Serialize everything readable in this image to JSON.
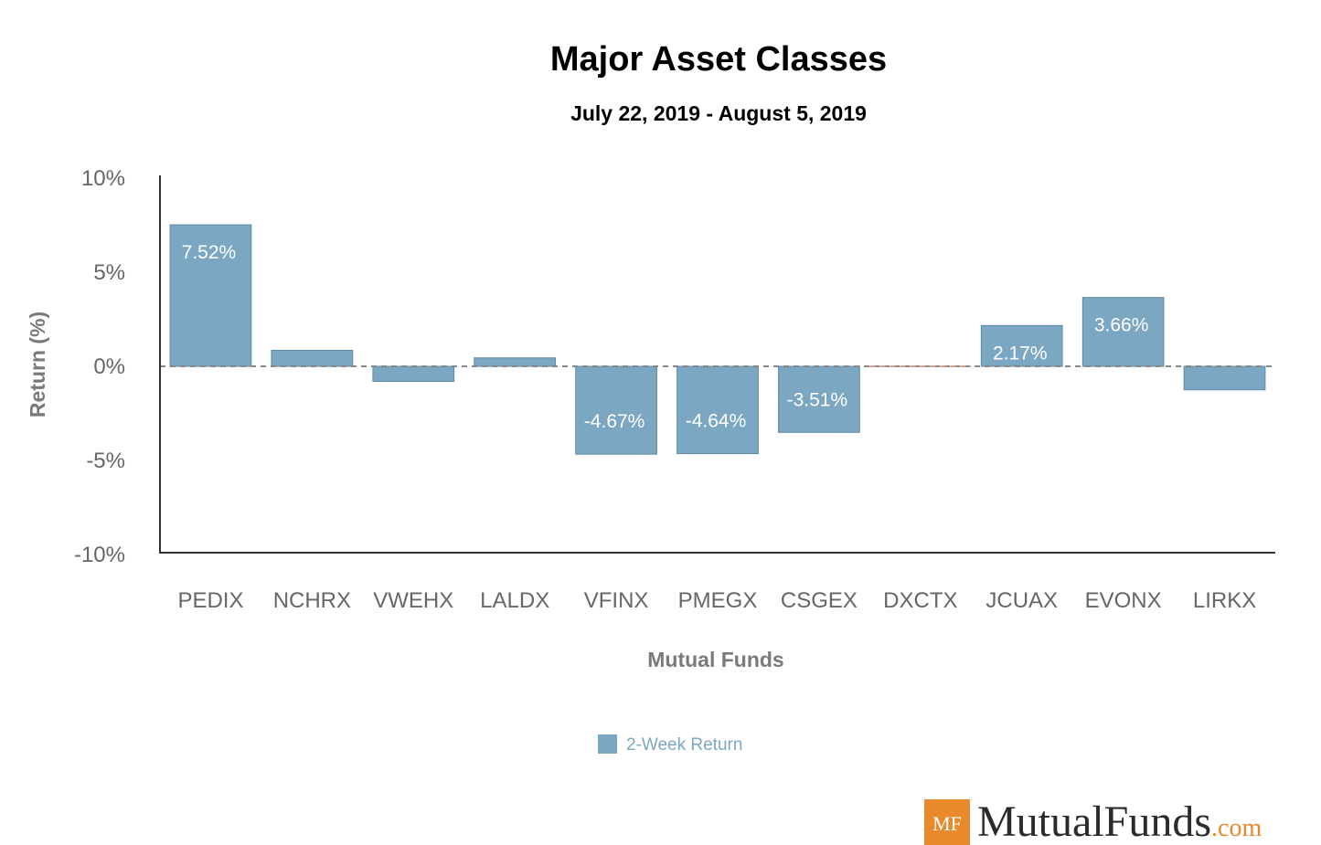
{
  "colors": {
    "bar": "#7ba7c2",
    "bar_stroke": "#5d8aa8",
    "zero_line": "#888888",
    "zero_line_highlight": "#d9a090",
    "axis": "#333333",
    "brand_badge": "#e8892c",
    "brand_tld": "#e8892c"
  },
  "chart_data": {
    "type": "bar",
    "title": "Major Asset Classes",
    "subtitle": "July 22, 2019 - August 5, 2019",
    "xlabel": "Mutual Funds",
    "ylabel": "Return (%)",
    "ylim": [
      -10,
      10
    ],
    "y_ticks": [
      {
        "value": 10,
        "label": "10%"
      },
      {
        "value": 5,
        "label": "5%"
      },
      {
        "value": 0,
        "label": "0%"
      },
      {
        "value": -5,
        "label": "-5%"
      },
      {
        "value": -10,
        "label": "-10%"
      }
    ],
    "categories": [
      "PEDIX",
      "NCHRX",
      "VWEHX",
      "LALDX",
      "VFINX",
      "PMEGX",
      "CSGEX",
      "DXCTX",
      "JCUAX",
      "EVONX",
      "LIRKX"
    ],
    "series": [
      {
        "name": "2-Week Return",
        "values": [
          7.52,
          0.85,
          -0.8,
          0.45,
          -4.67,
          -4.64,
          -3.51,
          0.0,
          2.17,
          3.66,
          -1.25
        ],
        "data_labels": [
          "7.52%",
          "",
          "",
          "",
          "-4.67%",
          "-4.64%",
          "-3.51%",
          "",
          "2.17%",
          "3.66%",
          ""
        ]
      }
    ],
    "grid": false,
    "legend_position": "bottom"
  },
  "brand": {
    "badge": "MF",
    "name": "MutualFunds",
    "tld": ".com"
  }
}
